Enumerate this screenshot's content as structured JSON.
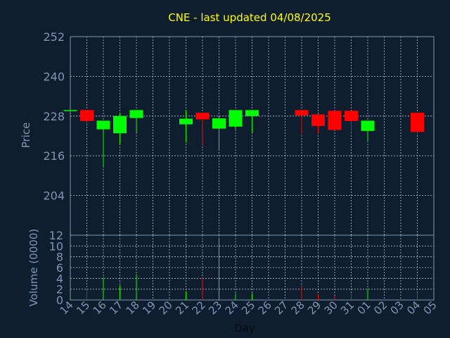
{
  "chart_data": {
    "type": "candlestick",
    "title": "CNE - last updated 04/08/2025",
    "xlabel": "Day",
    "price_ylabel": "Price",
    "volume_ylabel": "Volume (0000)",
    "price_ylim": [
      192,
      252
    ],
    "price_yticks": [
      "204",
      "216",
      "228",
      "240",
      "252"
    ],
    "volume_ylim": [
      0,
      12
    ],
    "volume_yticks": [
      "0",
      "2",
      "4",
      "6",
      "8",
      "10",
      "12"
    ],
    "grid": true,
    "day_labels": [
      "14",
      "15",
      "16",
      "17",
      "18",
      "19",
      "20",
      "21",
      "22",
      "23",
      "24",
      "25",
      "26",
      "27",
      "28",
      "29",
      "30",
      "31",
      "01",
      "02",
      "03",
      "04",
      "05"
    ],
    "candles": [
      {
        "day": "14",
        "open": 229.5,
        "close": 229.8,
        "high": 229.8,
        "low": 229.4,
        "volume": 0.2
      },
      {
        "day": "15",
        "open": 229.8,
        "close": 226.5,
        "high": 229.8,
        "low": 225.5,
        "volume": 2.0
      },
      {
        "day": "16",
        "open": 224.0,
        "close": 226.6,
        "high": 226.6,
        "low": 212.5,
        "volume": 4.2
      },
      {
        "day": "17",
        "open": 222.8,
        "close": 228.0,
        "high": 229.0,
        "low": 219.5,
        "volume": 2.7
      },
      {
        "day": "18",
        "open": 227.4,
        "close": 229.8,
        "high": 229.8,
        "low": 223.0,
        "volume": 4.8
      },
      {
        "day": "21",
        "open": 225.5,
        "close": 227.2,
        "high": 229.8,
        "low": 220.0,
        "volume": 1.6
      },
      {
        "day": "22",
        "open": 229.0,
        "close": 227.0,
        "high": 229.0,
        "low": 219.5,
        "volume": 4.1
      },
      {
        "day": "23",
        "open": 224.2,
        "close": 227.3,
        "high": 227.8,
        "low": 218.0,
        "volume": 11.5
      },
      {
        "day": "24",
        "open": 224.8,
        "close": 229.8,
        "high": 229.8,
        "low": 224.0,
        "volume": 1.2
      },
      {
        "day": "25",
        "open": 228.0,
        "close": 229.8,
        "high": 229.8,
        "low": 223.0,
        "volume": 1.2
      },
      {
        "day": "28",
        "open": 229.8,
        "close": 228.2,
        "high": 229.8,
        "low": 222.5,
        "volume": 2.5
      },
      {
        "day": "29",
        "open": 228.5,
        "close": 225.0,
        "high": 228.5,
        "low": 222.8,
        "volume": 1.0
      },
      {
        "day": "30",
        "open": 229.6,
        "close": 223.8,
        "high": 229.6,
        "low": 223.8,
        "volume": 0.8
      },
      {
        "day": "31",
        "open": 229.6,
        "close": 226.5,
        "high": 229.6,
        "low": 222.8,
        "volume": 1.2
      },
      {
        "day": "01",
        "open": 223.5,
        "close": 226.6,
        "high": 226.6,
        "low": 220.5,
        "volume": 2.0
      },
      {
        "day": "04",
        "open": 229.0,
        "close": 223.2,
        "high": 229.0,
        "low": 222.5,
        "volume": 1.4
      }
    ],
    "colors": {
      "background": "#0f1e2e",
      "up": "#00ff00",
      "down": "#ff0000",
      "title": "#ffff00",
      "axis_text": "#7e96b4",
      "axis_line": "#7e96b4",
      "grid": "#aebccc"
    }
  }
}
